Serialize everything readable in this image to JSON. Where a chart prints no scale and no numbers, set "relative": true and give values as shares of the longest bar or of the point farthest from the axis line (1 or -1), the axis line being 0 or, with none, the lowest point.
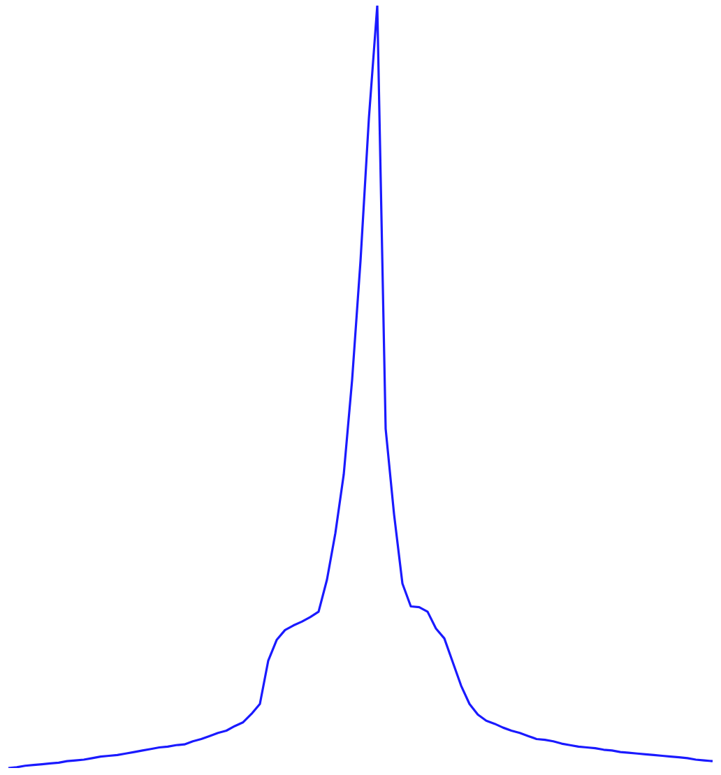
{
  "chart_data": {
    "type": "line",
    "relative": true,
    "categories": [
      null,
      null,
      null,
      null,
      null,
      null,
      null,
      null,
      null,
      null,
      null,
      null,
      null,
      null,
      null,
      null,
      null,
      null,
      null,
      null,
      null,
      null,
      null,
      null,
      null,
      null,
      null,
      null,
      null,
      null,
      null,
      null,
      null,
      null,
      null,
      null,
      null,
      null,
      null,
      null,
      null,
      null,
      null,
      null,
      null,
      null,
      null,
      null,
      null,
      null,
      null,
      null,
      null,
      null,
      null,
      null,
      null,
      null,
      null,
      null,
      null,
      null,
      null,
      null,
      null,
      null,
      null,
      null,
      null,
      null,
      null,
      null,
      null,
      null,
      null,
      null,
      null,
      null,
      null,
      null,
      null,
      null,
      null,
      null,
      null
    ],
    "series": [
      {
        "color": "#1a1aff",
        "values": [
          0,
          0.001,
          0.003,
          0.004,
          0.005,
          0.006,
          0.007,
          0.009,
          0.01,
          0.011,
          0.013,
          0.015,
          0.016,
          0.017,
          0.019,
          0.021,
          0.023,
          0.025,
          0.027,
          0.028,
          0.03,
          0.031,
          0.035,
          0.038,
          0.042,
          0.046,
          0.049,
          0.055,
          0.06,
          0.071,
          0.084,
          0.141,
          0.168,
          0.181,
          0.187,
          0.192,
          0.198,
          0.205,
          0.247,
          0.308,
          0.385,
          0.509,
          0.665,
          0.852,
          1,
          0.445,
          0.333,
          0.242,
          0.212,
          0.211,
          0.205,
          0.183,
          0.17,
          0.139,
          0.108,
          0.084,
          0.07,
          0.062,
          0.058,
          0.053,
          0.049,
          0.046,
          0.042,
          0.038,
          0.037,
          0.035,
          0.032,
          0.03,
          0.028,
          0.027,
          0.026,
          0.024,
          0.023,
          0.021,
          0.02,
          0.019,
          0.018,
          0.017,
          0.016,
          0.015,
          0.014,
          0.013,
          0.011,
          0.01,
          0.009
        ]
      }
    ],
    "legend": false,
    "marker": "none",
    "line_style": "solid"
  }
}
